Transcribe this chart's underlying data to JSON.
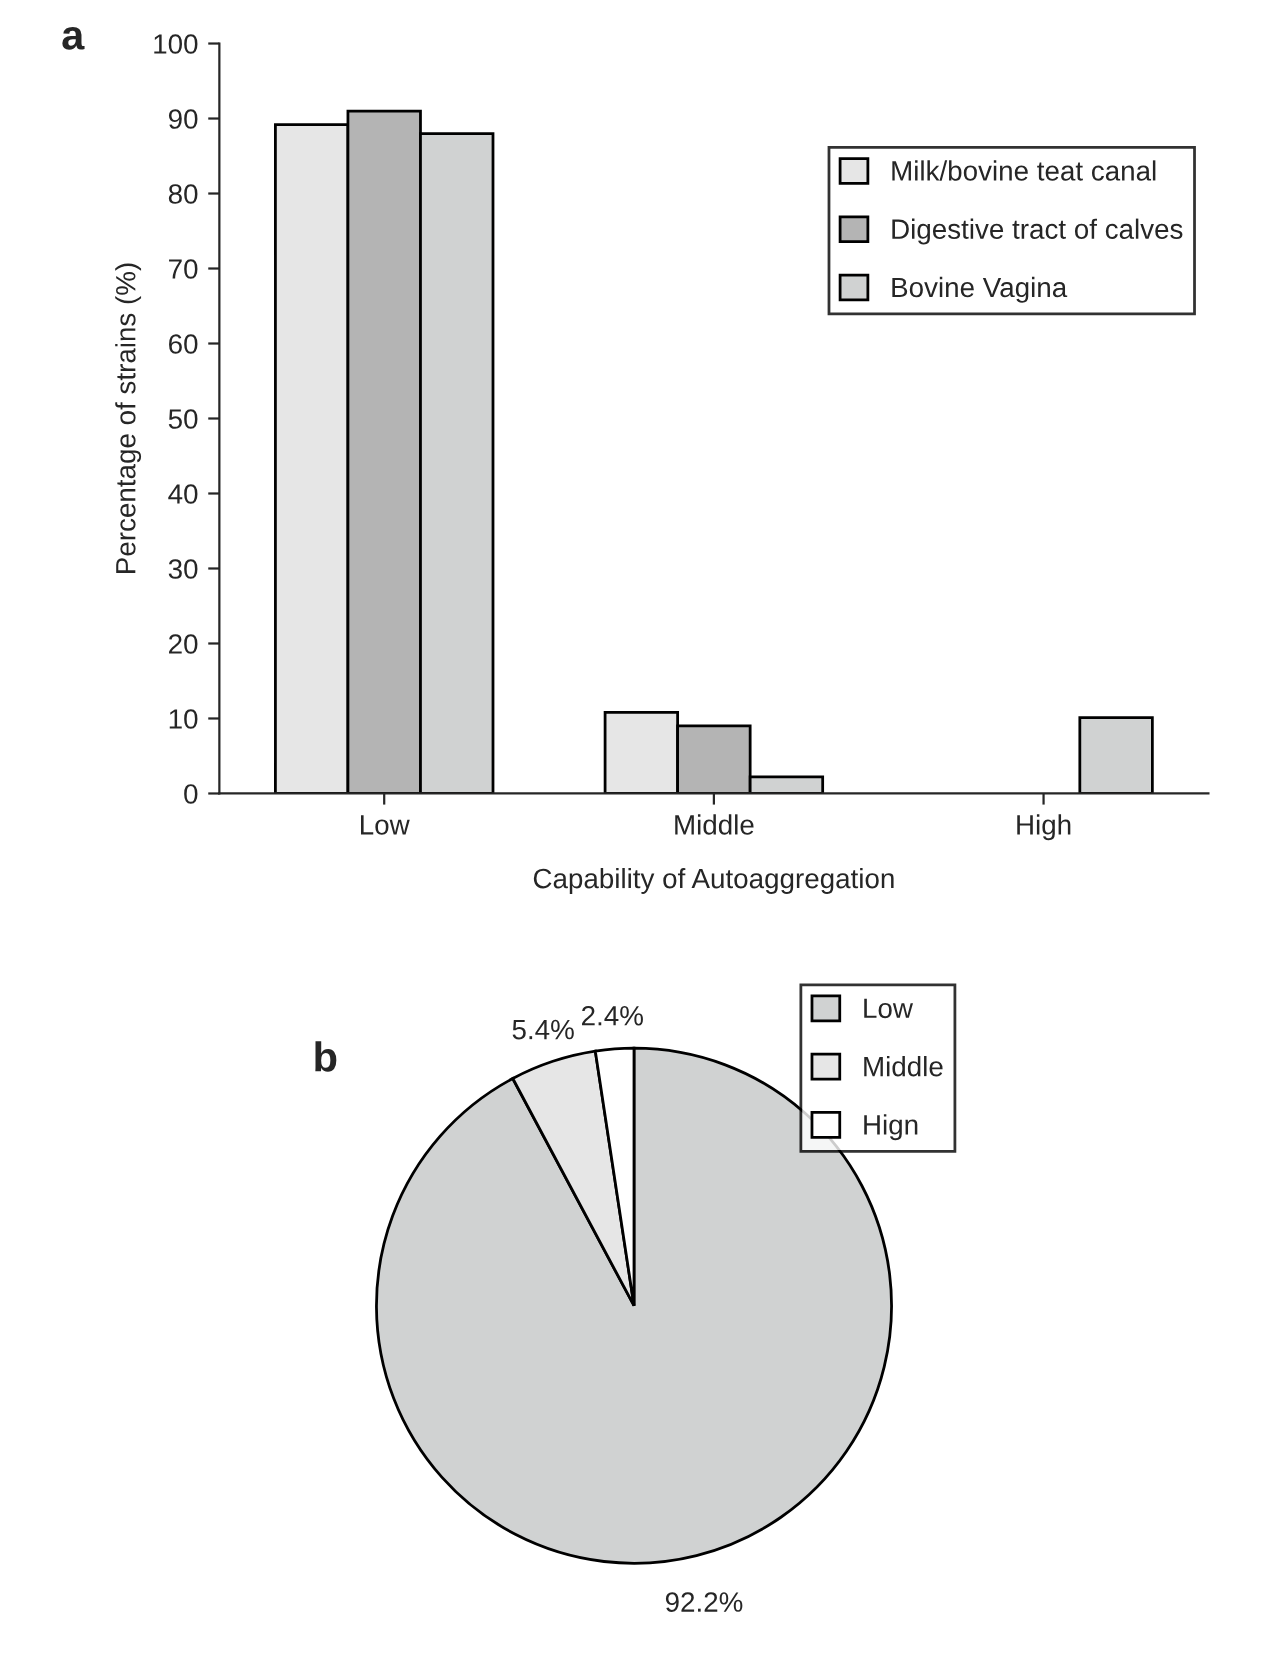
{
  "chart_data": [
    {
      "type": "bar",
      "title": "a",
      "xlabel": "Capability of Autoaggregation",
      "ylabel": "Percentage of strains (%)",
      "categories": [
        "Low",
        "Middle",
        "High"
      ],
      "series": [
        {
          "name": "Milk/bovine teat canal",
          "color": "#e6e6e6",
          "values": [
            89.2,
            10.8,
            null
          ]
        },
        {
          "name": "Digestive tract of calves",
          "color": "#b4b4b4",
          "values": [
            91,
            9,
            null
          ]
        },
        {
          "name": "Bovine Vagina",
          "color": "#d0d2d2",
          "values": [
            88,
            2.2,
            10.1
          ]
        }
      ],
      "ylim": [
        0,
        100
      ],
      "yticks": [
        0,
        10,
        20,
        30,
        40,
        50,
        60,
        70,
        80,
        90,
        100
      ],
      "grid": false,
      "legend": "top right"
    },
    {
      "type": "pie",
      "title": "b",
      "categories": [
        "Low",
        "Middle",
        "Hign"
      ],
      "values": [
        92.2,
        5.4,
        2.4
      ],
      "colors": [
        "#d0d2d2",
        "#e6e6e6",
        "#ffffff"
      ],
      "value_labels": [
        "92.2%",
        "5.4%",
        "2.4%"
      ],
      "legend": "top right"
    }
  ]
}
